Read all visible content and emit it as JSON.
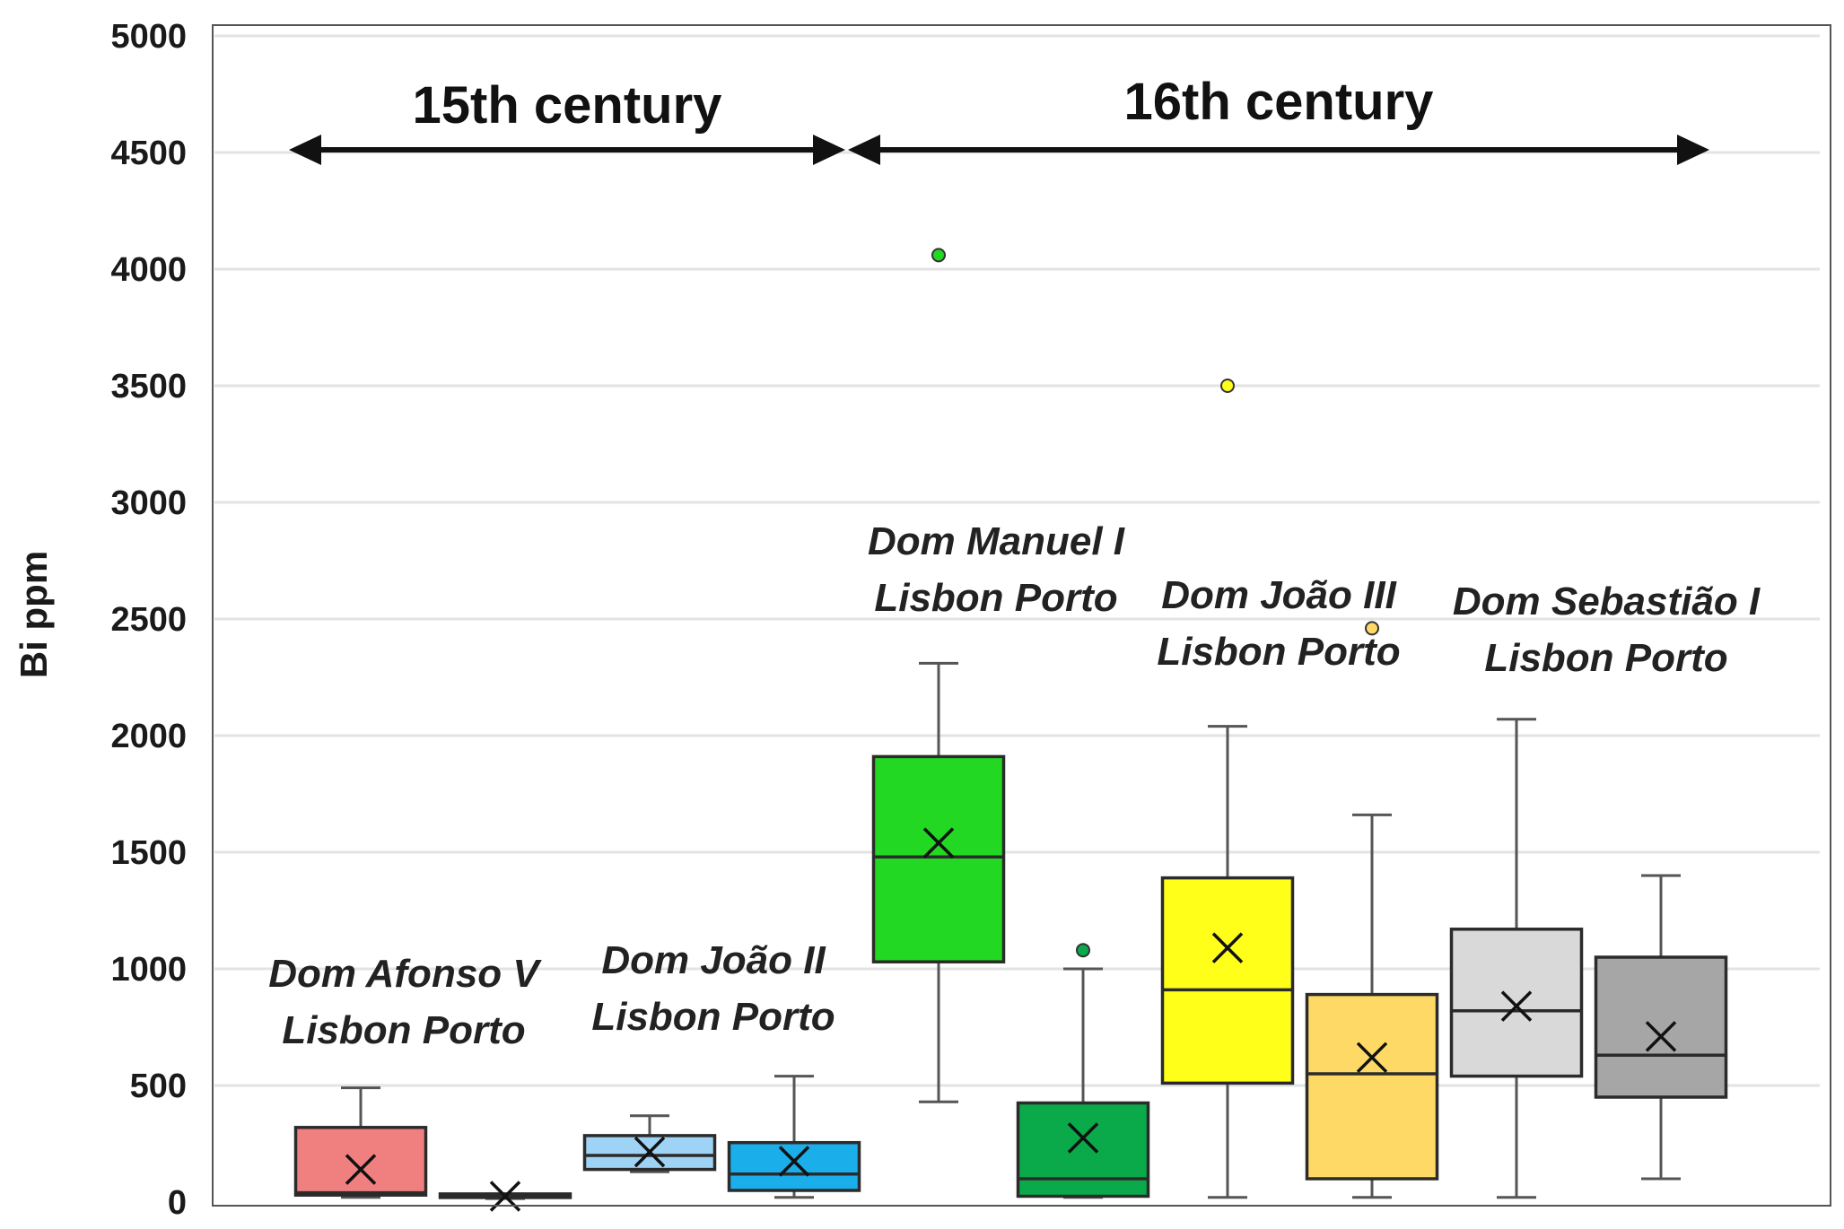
{
  "chart_data": {
    "type": "box",
    "ylabel": "Bi ppm",
    "ylim": [
      0,
      5000
    ],
    "yticks": [
      0,
      500,
      1000,
      1500,
      2000,
      2500,
      3000,
      3500,
      4000,
      4500,
      5000
    ],
    "grid": "horizontal",
    "centuries": [
      {
        "label": "15th century",
        "from_box": 0,
        "to_box": 3
      },
      {
        "label": "16th century",
        "from_box": 4,
        "to_box": 9
      }
    ],
    "groups": [
      {
        "king": "Dom Afonso V",
        "cities": "Lisbon  Porto",
        "boxes": [
          0,
          1
        ]
      },
      {
        "king": "Dom João II",
        "cities": "Lisbon  Porto",
        "boxes": [
          2,
          3
        ]
      },
      {
        "king": "Dom Manuel I",
        "cities": "Lisbon  Porto",
        "boxes": [
          4,
          5
        ]
      },
      {
        "king": "Dom João III",
        "cities": "Lisbon  Porto",
        "boxes": [
          6,
          7
        ]
      },
      {
        "king": "Dom Sebastião I",
        "cities": "Lisbon  Porto",
        "boxes": [
          8,
          9
        ]
      }
    ],
    "boxes": [
      {
        "reign": "Dom Afonso V",
        "city": "Lisbon",
        "min": 20,
        "q1": 30,
        "median": 40,
        "q3": 320,
        "max": 490,
        "mean": 140,
        "outliers": [],
        "color": "#f08080"
      },
      {
        "reign": "Dom Afonso V",
        "city": "Porto",
        "min": 15,
        "q1": 20,
        "median": 25,
        "q3": 35,
        "max": 35,
        "mean": 25,
        "outliers": [],
        "color": "#dcdcdc"
      },
      {
        "reign": "Dom João II",
        "city": "Lisbon",
        "min": 130,
        "q1": 140,
        "median": 200,
        "q3": 285,
        "max": 370,
        "mean": 215,
        "outliers": [],
        "color": "#9fd3f5"
      },
      {
        "reign": "Dom João II",
        "city": "Porto",
        "min": 20,
        "q1": 50,
        "median": 120,
        "q3": 255,
        "max": 540,
        "mean": 175,
        "outliers": [],
        "color": "#1aaeea"
      },
      {
        "reign": "Dom Manuel I",
        "city": "Lisbon",
        "min": 430,
        "q1": 1030,
        "median": 1480,
        "q3": 1910,
        "max": 2310,
        "mean": 1540,
        "outliers": [
          4060
        ],
        "color": "#22d822"
      },
      {
        "reign": "Dom Manuel I",
        "city": "Porto",
        "min": 20,
        "q1": 25,
        "median": 100,
        "q3": 425,
        "max": 1000,
        "mean": 275,
        "outliers": [
          1080
        ],
        "color": "#0aa94a"
      },
      {
        "reign": "Dom João III",
        "city": "Lisbon",
        "min": 20,
        "q1": 510,
        "median": 910,
        "q3": 1390,
        "max": 2040,
        "mean": 1090,
        "outliers": [
          3500
        ],
        "color": "#ffff1a"
      },
      {
        "reign": "Dom João III",
        "city": "Porto",
        "min": 20,
        "q1": 100,
        "median": 550,
        "q3": 890,
        "max": 1660,
        "mean": 620,
        "outliers": [
          2460
        ],
        "color": "#ffd966"
      },
      {
        "reign": "Dom Sebastião I",
        "city": "Lisbon",
        "min": 20,
        "q1": 540,
        "median": 820,
        "q3": 1170,
        "max": 2070,
        "mean": 840,
        "outliers": [],
        "color": "#d9d9d9"
      },
      {
        "reign": "Dom Sebastião I",
        "city": "Porto",
        "min": 100,
        "q1": 450,
        "median": 630,
        "q3": 1050,
        "max": 1400,
        "mean": 710,
        "outliers": [],
        "color": "#a6a6a6"
      }
    ]
  }
}
